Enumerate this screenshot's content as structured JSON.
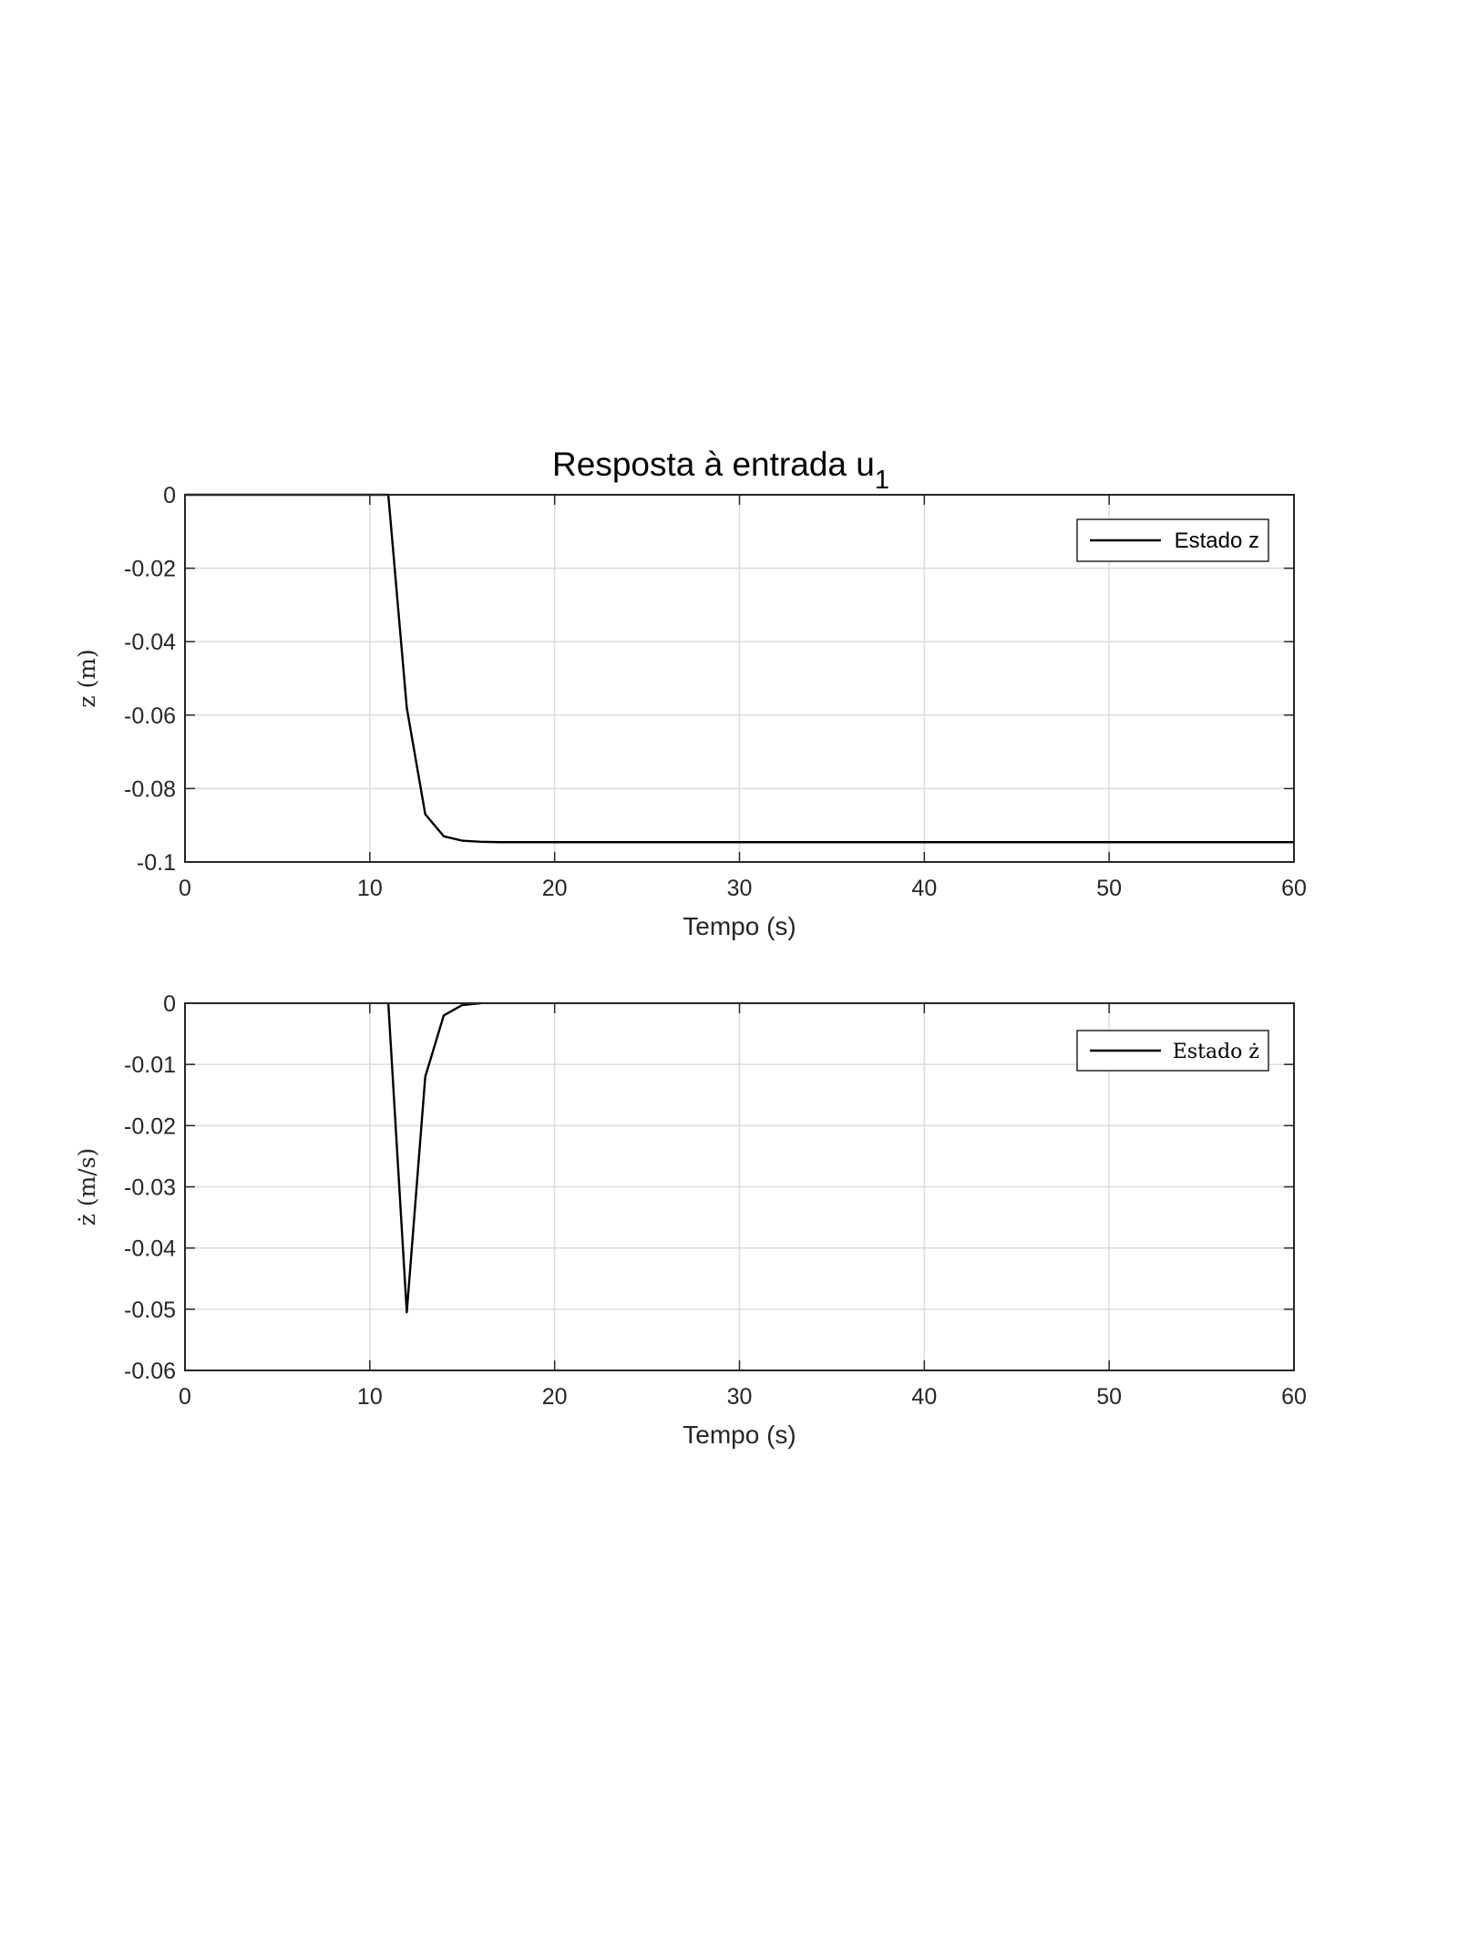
{
  "figure": {
    "title_main": "Resposta à entrada u",
    "title_subscript": "1"
  },
  "chart_data": [
    {
      "type": "line",
      "xlabel": "Tempo (s)",
      "ylabel": "z (m)",
      "xlim": [
        0,
        60
      ],
      "ylim": [
        -0.1,
        0
      ],
      "xticks": [
        0,
        10,
        20,
        30,
        40,
        50,
        60
      ],
      "yticks": [
        0,
        -0.02,
        -0.04,
        -0.06,
        -0.08,
        -0.1
      ],
      "xtick_labels": [
        "0",
        "10",
        "20",
        "30",
        "40",
        "50",
        "60"
      ],
      "ytick_labels": [
        "0",
        "-0.02",
        "-0.04",
        "-0.06",
        "-0.08",
        "-0.1"
      ],
      "grid": true,
      "legend_position": "top-right",
      "series": [
        {
          "name": "Estado z",
          "color": "#000000",
          "x": [
            0,
            11,
            12,
            13,
            14,
            15,
            16,
            17,
            20,
            30,
            40,
            50,
            60
          ],
          "y": [
            0,
            0,
            -0.058,
            -0.087,
            -0.093,
            -0.0942,
            -0.0945,
            -0.0946,
            -0.0946,
            -0.0946,
            -0.0946,
            -0.0946,
            -0.0946
          ]
        }
      ]
    },
    {
      "type": "line",
      "xlabel": "Tempo (s)",
      "ylabel": "ż (m/s)",
      "xlim": [
        0,
        60
      ],
      "ylim": [
        -0.06,
        0
      ],
      "xticks": [
        0,
        10,
        20,
        30,
        40,
        50,
        60
      ],
      "yticks": [
        0,
        -0.01,
        -0.02,
        -0.03,
        -0.04,
        -0.05,
        -0.06
      ],
      "xtick_labels": [
        "0",
        "10",
        "20",
        "30",
        "40",
        "50",
        "60"
      ],
      "ytick_labels": [
        "0",
        "-0.01",
        "-0.02",
        "-0.03",
        "-0.04",
        "-0.05",
        "-0.06"
      ],
      "grid": true,
      "legend_position": "top-right",
      "series": [
        {
          "name": "Estado ż",
          "color": "#000000",
          "x": [
            11,
            12,
            13,
            14,
            15,
            16
          ],
          "y": [
            0,
            -0.0505,
            -0.012,
            -0.002,
            -0.0003,
            0
          ]
        }
      ]
    }
  ]
}
